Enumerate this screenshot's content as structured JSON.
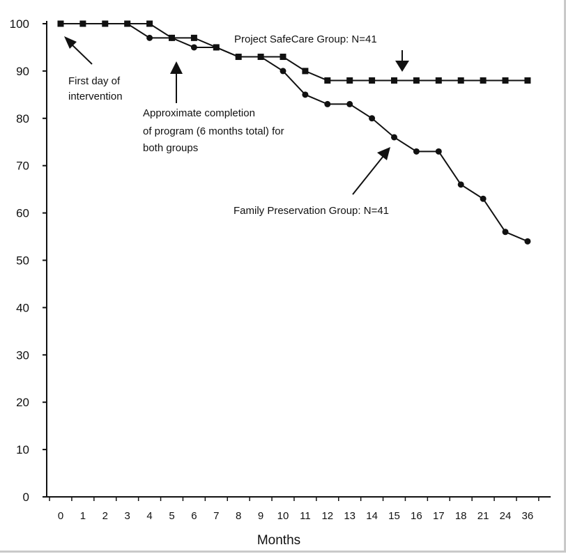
{
  "chart_data": {
    "type": "line",
    "xlabel": "Months",
    "ylabel": "",
    "categories": [
      "0",
      "1",
      "2",
      "3",
      "4",
      "5",
      "6",
      "7",
      "8",
      "9",
      "10",
      "11",
      "12",
      "13",
      "14",
      "15",
      "16",
      "17",
      "18",
      "21",
      "24",
      "36"
    ],
    "yticks": [
      0,
      10,
      20,
      30,
      40,
      50,
      60,
      70,
      80,
      90,
      100
    ],
    "ylim": [
      0,
      100
    ],
    "grid": false,
    "series": [
      {
        "name": "Project SafeCare Group:  N=41",
        "marker": "square",
        "color": "#111111",
        "values": [
          100,
          100,
          100,
          100,
          100,
          97,
          97,
          95,
          93,
          93,
          93,
          90,
          88,
          88,
          88,
          88,
          88,
          88,
          88,
          88,
          88,
          88
        ]
      },
      {
        "name": "Family Preservation Group:  N=41",
        "marker": "circle",
        "color": "#111111",
        "values": [
          100,
          100,
          100,
          100,
          97,
          97,
          95,
          95,
          93,
          93,
          90,
          85,
          83,
          83,
          80,
          76,
          73,
          73,
          66,
          63,
          56,
          54
        ]
      }
    ],
    "annotations": [
      {
        "id": "first-day",
        "lines": [
          "First day of",
          "intervention"
        ]
      },
      {
        "id": "completion",
        "lines": [
          "Approximate completion",
          "of program (6 months total) for",
          "both groups"
        ]
      }
    ]
  }
}
